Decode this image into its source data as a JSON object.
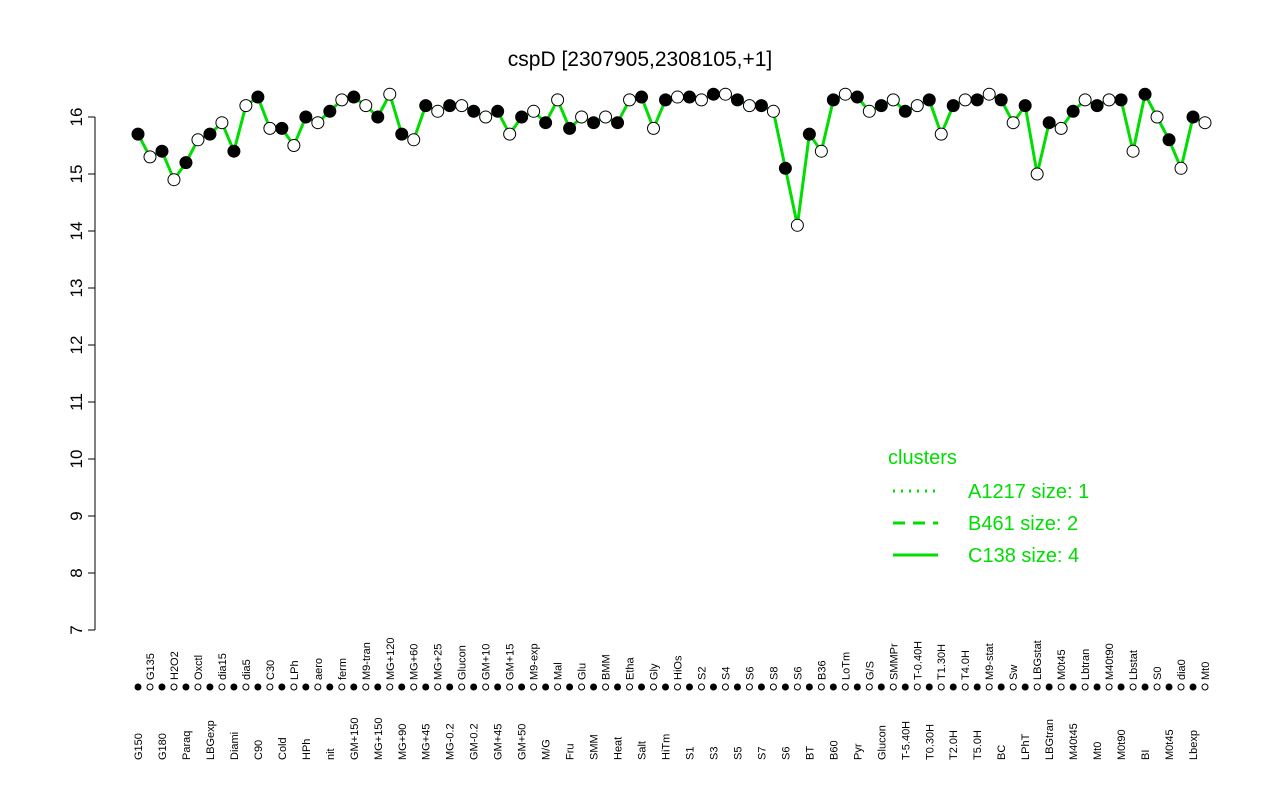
{
  "chart_data": {
    "type": "line",
    "title": "cspD [2307905,2308105,+1]",
    "categories": [
      "G150",
      "G135",
      "G180",
      "H2O2",
      "Paraq",
      "Oxctl",
      "LBGexp",
      "dia15",
      "Diami",
      "dia5",
      "C90",
      "C30",
      "Cold",
      "LPh",
      "HPh",
      "aero",
      "nit",
      "ferm",
      "GM+150",
      "M9-tran",
      "MG+150",
      "MG+120",
      "MG+90",
      "MG+60",
      "MG+45",
      "MG+25",
      "MG-0.2",
      "Glucon",
      "GM-0.2",
      "GM+10",
      "GM+45",
      "GM+15",
      "GM+50",
      "M9-exp",
      "M/G",
      "Mal",
      "Fru",
      "Glu",
      "SMM",
      "BMM",
      "Heat",
      "Etha",
      "Salt",
      "Gly",
      "HiTm",
      "HiOs",
      "S1",
      "S2",
      "S3",
      "S4",
      "S5",
      "S6",
      "S7",
      "S8",
      "S6",
      "S6",
      "BT",
      "B36",
      "B60",
      "LoTm",
      "Pyr",
      "G/S",
      "Glucon",
      "SMMPr",
      "T-5.40H",
      "T-0.40H",
      "T0.30H",
      "T1.30H",
      "T2.0H",
      "T4.0H",
      "T5.0H",
      "M9-stat",
      "BC",
      "Sw",
      "LPhT",
      "LBGstat",
      "LBGtran",
      "M0t45",
      "M40t45",
      "Lbtran",
      "Mt0",
      "M40t90",
      "M0t90",
      "Lbstat",
      "BI",
      "S0",
      "M0t45",
      "dia0",
      "Lbexp",
      "Mt0"
    ],
    "series": [
      {
        "name": "C138 size: 4",
        "color": "#00dd00",
        "values": [
          15.7,
          15.3,
          15.4,
          14.9,
          15.2,
          15.6,
          15.7,
          15.9,
          15.4,
          16.2,
          16.35,
          15.8,
          15.8,
          15.5,
          16.0,
          15.9,
          16.1,
          16.3,
          16.35,
          16.2,
          16.0,
          16.4,
          15.7,
          15.6,
          16.2,
          16.1,
          16.2,
          16.2,
          16.1,
          16.0,
          16.1,
          15.7,
          16.0,
          16.1,
          15.9,
          16.3,
          15.8,
          16.0,
          15.9,
          16.0,
          15.9,
          16.3,
          16.35,
          15.8,
          16.3,
          16.35,
          16.35,
          16.3,
          16.4,
          16.4,
          16.3,
          16.2,
          16.2,
          16.1,
          15.1,
          14.1,
          15.7,
          15.4,
          16.3,
          16.4,
          16.35,
          16.1,
          16.2,
          16.3,
          16.1,
          16.2,
          16.3,
          15.7,
          16.2,
          16.3,
          16.3,
          16.4,
          16.3,
          15.9,
          16.2,
          15.0,
          15.9,
          15.8,
          16.1,
          16.3,
          16.2,
          16.3,
          16.3,
          15.4,
          16.4,
          16.0,
          15.6,
          15.1,
          16.0,
          15.9
        ]
      }
    ],
    "ylim": [
      7,
      16.5
    ],
    "yticks": [
      7,
      8,
      9,
      10,
      11,
      12,
      13,
      14,
      15,
      16
    ],
    "legend": {
      "title": "clusters",
      "position": "right",
      "color": "#00dd00",
      "entries": [
        {
          "name": "A1217 size: 1",
          "dash": "2,6"
        },
        {
          "name": "B461 size: 2",
          "dash": "12,8"
        },
        {
          "name": "C138 size: 4",
          "dash": "none"
        }
      ]
    }
  }
}
